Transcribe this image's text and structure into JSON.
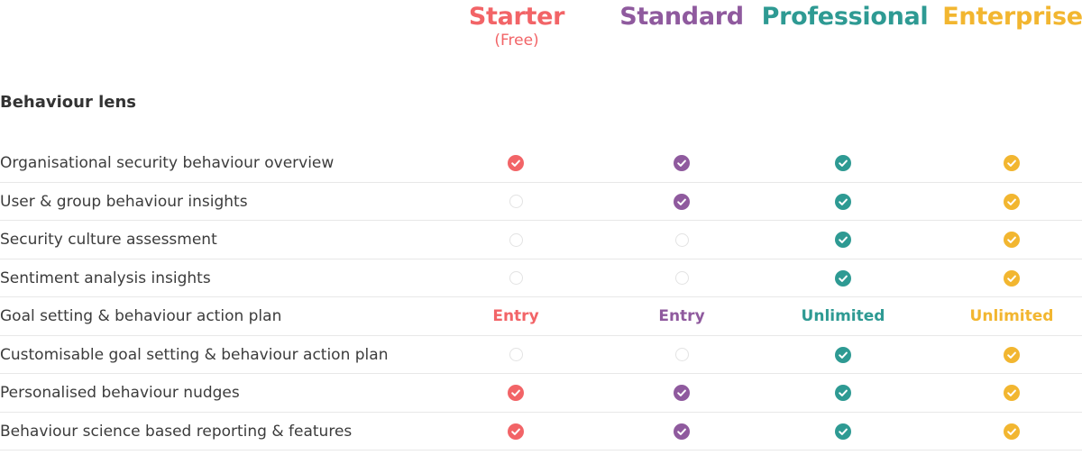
{
  "colors": {
    "starter": "#f26467",
    "standard": "#8f5a9e",
    "professional": "#2e9a93",
    "enterprise": "#f2b630",
    "empty_outline": "#e3e3e3"
  },
  "plans": [
    {
      "key": "starter",
      "name": "Starter",
      "sub": "(Free)"
    },
    {
      "key": "standard",
      "name": "Standard",
      "sub": ""
    },
    {
      "key": "professional",
      "name": "Professional",
      "sub": ""
    },
    {
      "key": "enterprise",
      "name": "Enterprise",
      "sub": ""
    }
  ],
  "section": {
    "title": "Behaviour lens"
  },
  "features": [
    {
      "label": "Organisational security behaviour overview",
      "values": [
        "check",
        "check",
        "check",
        "check"
      ]
    },
    {
      "label": "User & group behaviour insights",
      "values": [
        "empty",
        "check",
        "check",
        "check"
      ]
    },
    {
      "label": "Security culture assessment",
      "values": [
        "empty",
        "empty",
        "check",
        "check"
      ]
    },
    {
      "label": "Sentiment analysis insights",
      "values": [
        "empty",
        "empty",
        "check",
        "check"
      ]
    },
    {
      "label": "Goal setting & behaviour action plan",
      "values": [
        "Entry",
        "Entry",
        "Unlimited",
        "Unlimited"
      ]
    },
    {
      "label": "Customisable goal setting & behaviour action plan",
      "values": [
        "empty",
        "empty",
        "check",
        "check"
      ]
    },
    {
      "label": "Personalised behaviour nudges",
      "values": [
        "check",
        "check",
        "check",
        "check"
      ]
    },
    {
      "label": "Behaviour science based reporting & features",
      "values": [
        "check",
        "check",
        "check",
        "check"
      ]
    }
  ],
  "icons": {
    "check": "check-circle-icon",
    "empty": "empty-circle-icon"
  }
}
